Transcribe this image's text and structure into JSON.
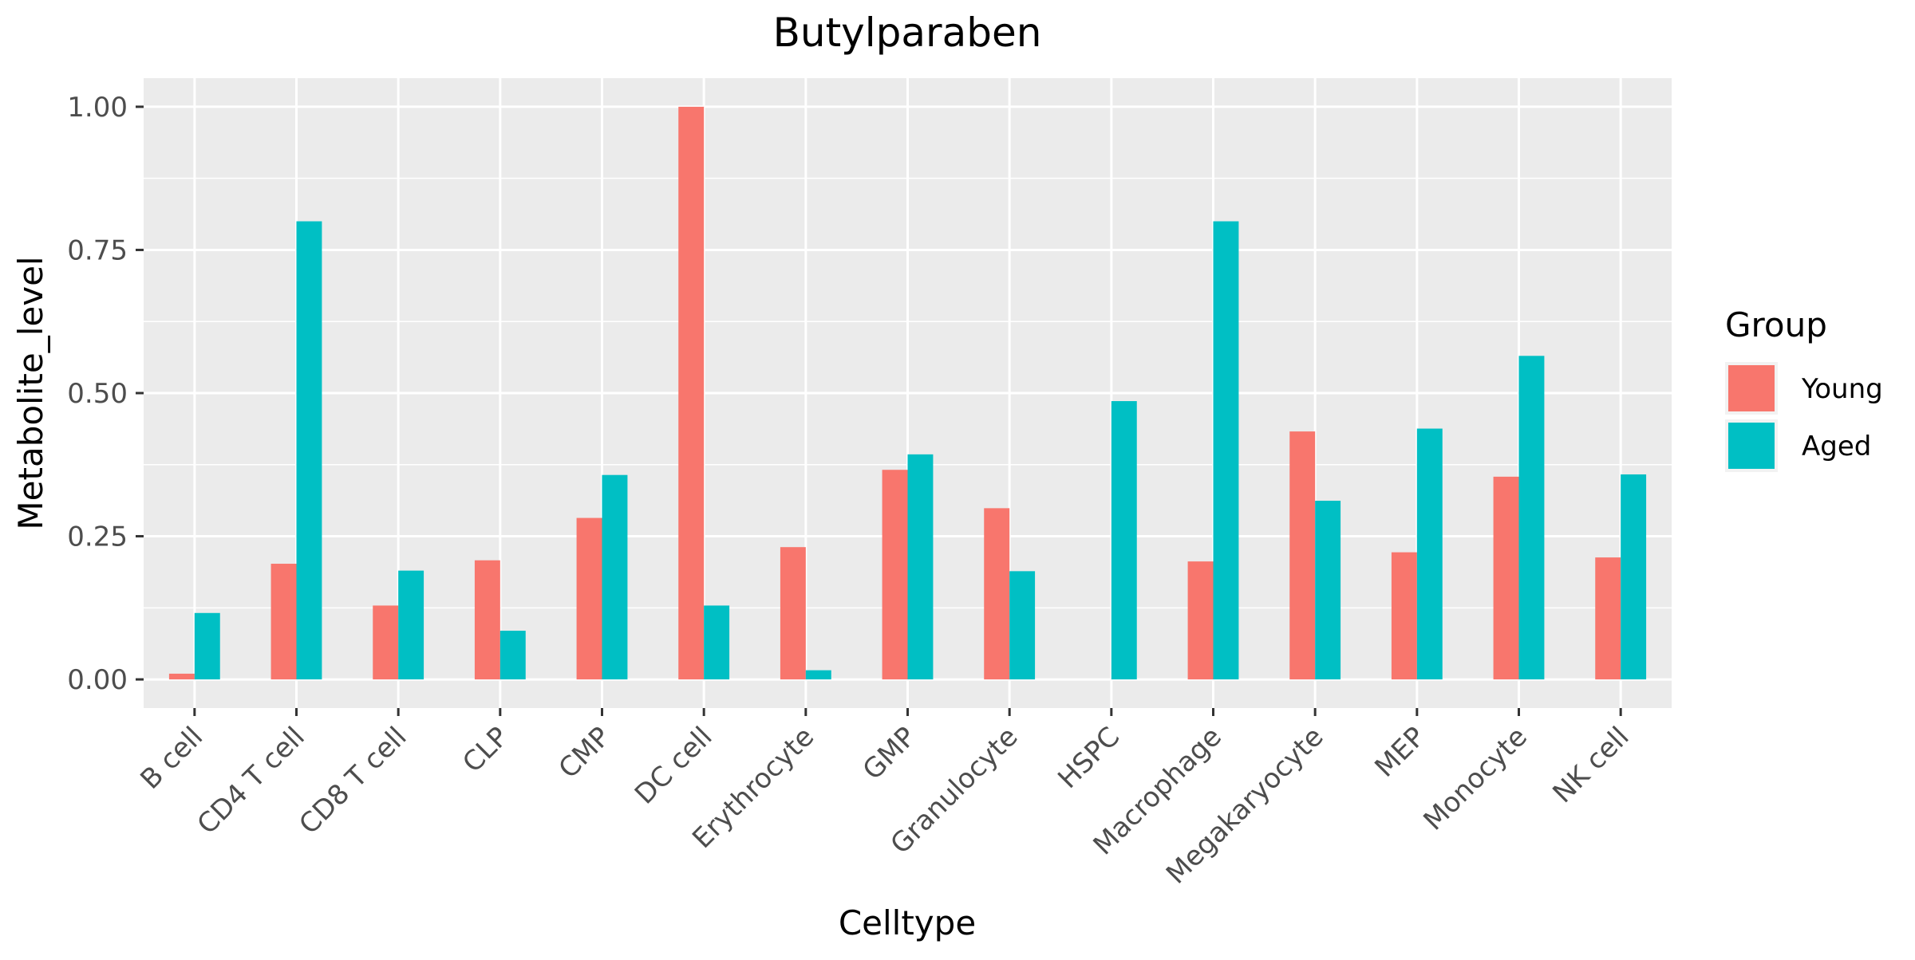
{
  "chart_data": {
    "type": "bar",
    "title": "Butylparaben",
    "xlabel": "Celltype",
    "ylabel": "Metabolite_level",
    "ylim": [
      -0.05,
      1.05
    ],
    "yticks": [
      0.0,
      0.25,
      0.5,
      0.75,
      1.0
    ],
    "ytick_labels": [
      "0.00",
      "0.25",
      "0.50",
      "0.75",
      "1.00"
    ],
    "grid": true,
    "legend": {
      "title": "Group",
      "position": "right"
    },
    "categories": [
      "B cell",
      "CD4 T cell",
      "CD8 T cell",
      "CLP",
      "CMP",
      "DC cell",
      "Erythrocyte",
      "GMP",
      "Granulocyte",
      "HSPC",
      "Macrophage",
      "Megakaryocyte",
      "MEP",
      "Monocyte",
      "NK cell"
    ],
    "series": [
      {
        "name": "Young",
        "color": "#F8766D",
        "values": [
          0.01,
          0.202,
          0.129,
          0.208,
          0.282,
          1.0,
          0.231,
          0.366,
          0.299,
          0.0,
          0.206,
          0.433,
          0.222,
          0.354,
          0.213
        ]
      },
      {
        "name": "Aged",
        "color": "#00BFC4",
        "values": [
          0.116,
          0.8,
          0.19,
          0.085,
          0.357,
          0.129,
          0.016,
          0.393,
          0.189,
          0.486,
          0.8,
          0.312,
          0.438,
          0.565,
          0.358
        ]
      }
    ]
  }
}
